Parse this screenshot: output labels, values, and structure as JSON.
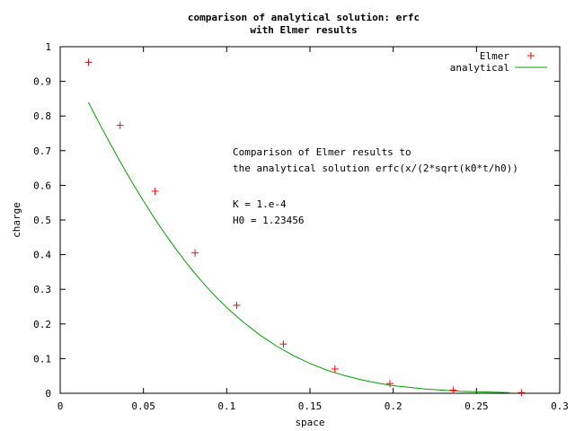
{
  "chart_data": {
    "type": "line",
    "title_lines": [
      "comparison of analytical solution: erfc",
      "with Elmer results"
    ],
    "xlabel": "space",
    "ylabel": "charge",
    "xlim": [
      0,
      0.3
    ],
    "ylim": [
      0,
      1
    ],
    "x_ticks": [
      {
        "value": 0,
        "label": "0"
      },
      {
        "value": 0.05,
        "label": "0.05"
      },
      {
        "value": 0.1,
        "label": "0.1"
      },
      {
        "value": 0.15,
        "label": "0.15"
      },
      {
        "value": 0.2,
        "label": "0.2"
      },
      {
        "value": 0.25,
        "label": "0.25"
      },
      {
        "value": 0.3,
        "label": "0.3"
      }
    ],
    "y_ticks": [
      {
        "value": 0,
        "label": "0"
      },
      {
        "value": 0.1,
        "label": "0.1"
      },
      {
        "value": 0.2,
        "label": "0.2"
      },
      {
        "value": 0.3,
        "label": "0.3"
      },
      {
        "value": 0.4,
        "label": "0.4"
      },
      {
        "value": 0.5,
        "label": "0.5"
      },
      {
        "value": 0.6,
        "label": "0.6"
      },
      {
        "value": 0.7,
        "label": "0.7"
      },
      {
        "value": 0.8,
        "label": "0.8"
      },
      {
        "value": 0.9,
        "label": "0.9"
      },
      {
        "value": 1,
        "label": "1"
      }
    ],
    "grid": false,
    "legend_position": "top-right",
    "series": [
      {
        "name": "Elmer",
        "style": "points",
        "marker": "+",
        "color": "#ff0000",
        "x": [
          0.017,
          0.036,
          0.057,
          0.081,
          0.106,
          0.134,
          0.165,
          0.198,
          0.236,
          0.277
        ],
        "y": [
          0.955,
          0.773,
          0.583,
          0.405,
          0.254,
          0.142,
          0.07,
          0.028,
          0.009,
          0.002
        ]
      },
      {
        "name": "analytical",
        "style": "line",
        "color": "#00a000",
        "x": [
          0.017,
          0.02,
          0.025,
          0.03,
          0.035,
          0.04,
          0.045,
          0.05,
          0.055,
          0.06,
          0.065,
          0.07,
          0.075,
          0.08,
          0.085,
          0.09,
          0.095,
          0.1,
          0.105,
          0.11,
          0.12,
          0.13,
          0.14,
          0.15,
          0.16,
          0.17,
          0.18,
          0.19,
          0.2,
          0.22,
          0.24,
          0.26,
          0.27
        ],
        "y": [
          0.839,
          0.811,
          0.765,
          0.721,
          0.677,
          0.635,
          0.594,
          0.555,
          0.517,
          0.481,
          0.446,
          0.413,
          0.381,
          0.351,
          0.323,
          0.296,
          0.271,
          0.248,
          0.226,
          0.205,
          0.168,
          0.136,
          0.109,
          0.086,
          0.067,
          0.052,
          0.04,
          0.03,
          0.022,
          0.012,
          0.006,
          0.003,
          0.002
        ]
      }
    ],
    "annotations": [
      "Comparison of Elmer results to",
      "the analytical solution erfc(x/(2*sqrt(k0*t/h0))",
      "K = 1.e-4",
      "H0 = 1.23456"
    ]
  }
}
